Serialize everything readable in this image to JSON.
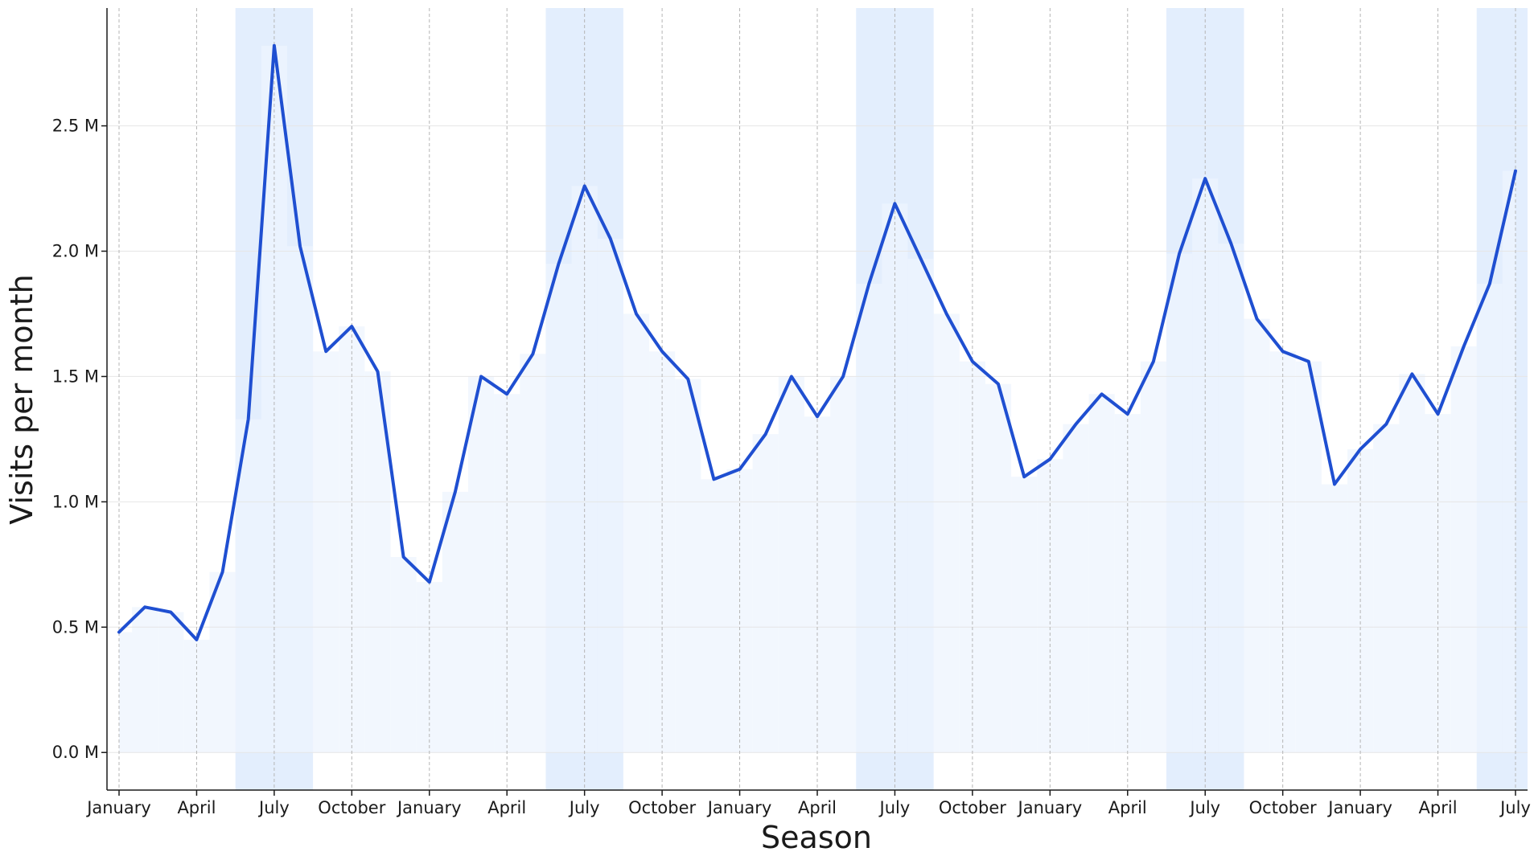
{
  "chart_data": {
    "type": "line",
    "xlabel": "Season",
    "ylabel": "Visits per month",
    "ylim": [
      -0.15,
      2.97
    ],
    "ytick_values": [
      0.0,
      0.5,
      1.0,
      1.5,
      2.0,
      2.5
    ],
    "ytick_labels": [
      "0.0 M",
      "0.5 M",
      "1.0 M",
      "1.5 M",
      "2.0 M",
      "2.5 M"
    ],
    "xtick_labels": [
      "January",
      "April",
      "July",
      "October",
      "January",
      "April",
      "July",
      "October",
      "January",
      "April",
      "July",
      "October",
      "January",
      "April",
      "July",
      "October",
      "January",
      "April",
      "July"
    ],
    "grid": true,
    "colors": {
      "line": "#1f4fd1",
      "area_fill": "#eef4fd",
      "summer_band": "#e3eefd"
    },
    "series": [
      {
        "values": [
          0.48,
          0.58,
          0.56,
          0.45,
          0.72,
          1.33,
          2.82,
          2.02,
          1.6,
          1.7,
          1.52,
          0.78,
          0.68,
          1.04,
          1.5,
          1.43,
          1.59,
          1.95,
          2.26,
          2.05,
          1.75,
          1.6,
          1.49,
          1.09,
          1.13,
          1.27,
          1.5,
          1.34,
          1.5,
          1.87,
          2.19,
          1.97,
          1.75,
          1.56,
          1.47,
          1.1,
          1.17,
          1.31,
          1.43,
          1.35,
          1.56,
          1.99,
          2.29,
          2.03,
          1.73,
          1.6,
          1.56,
          1.07,
          1.21,
          1.31,
          1.51,
          1.35,
          1.62,
          1.87,
          2.32
        ]
      }
    ],
    "shaded_periods": [
      {
        "label": "summer",
        "months": [
          "June",
          "July",
          "August"
        ]
      }
    ]
  }
}
